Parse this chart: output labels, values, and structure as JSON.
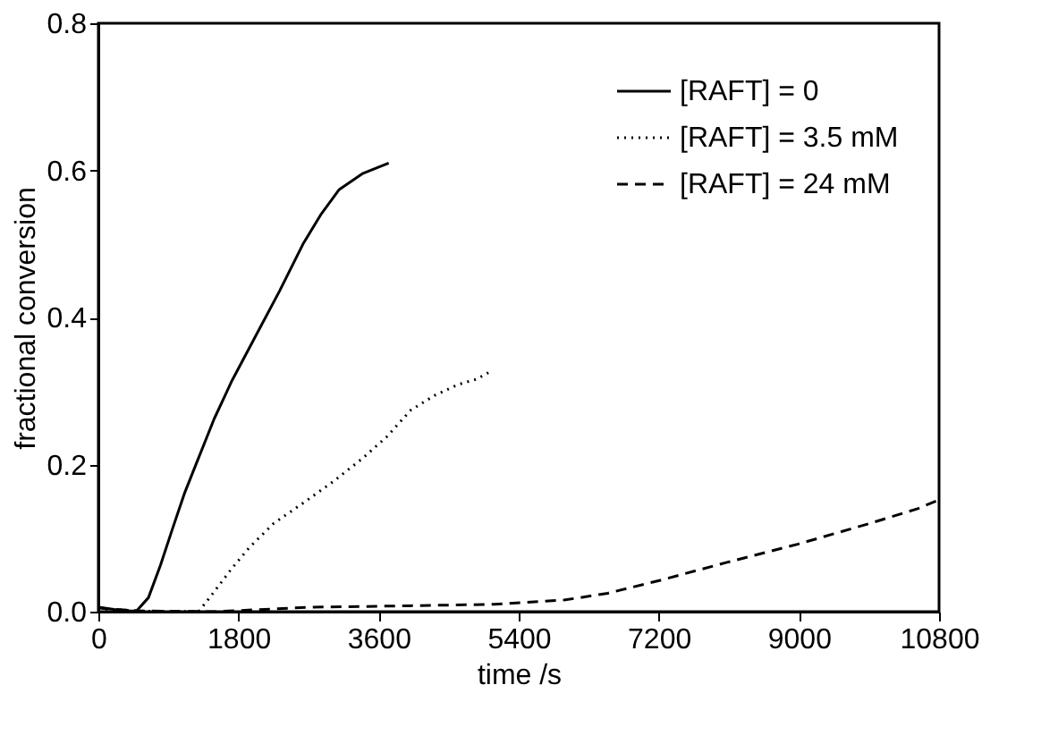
{
  "chart_data": {
    "type": "line",
    "xlabel": "time /s",
    "ylabel": "fractional conversion",
    "xlim": [
      0,
      10800
    ],
    "xticks": [
      0,
      1800,
      3600,
      5400,
      7200,
      9000,
      10800
    ],
    "ylim": [
      0,
      0.8
    ],
    "yticks": [
      {
        "value": 0,
        "label": "0.0"
      },
      {
        "value": 0.2,
        "label": "0.2"
      },
      {
        "value": 0.4,
        "label": "0.4"
      },
      {
        "value": 0.6,
        "label": "0.6"
      },
      {
        "value": 0.8,
        "label": "0.8"
      }
    ],
    "grid": false,
    "legend": "top right",
    "marker": "none",
    "series": [
      {
        "name": "[RAFT] = 0",
        "color": "#000000",
        "line_style": "solid",
        "x": [
          0,
          200,
          400,
          490,
          643,
          797,
          950,
          1103,
          1257,
          1487,
          1716,
          2022,
          2328,
          2635,
          2865,
          3094,
          3400,
          3730
        ],
        "values": [
          0.006,
          0.003,
          0.001,
          0.001,
          0.019,
          0.063,
          0.112,
          0.16,
          0.201,
          0.262,
          0.314,
          0.375,
          0.436,
          0.501,
          0.541,
          0.574,
          0.596,
          0.61
        ]
      },
      {
        "name": "[RAFT] = 3.5 mM",
        "color": "#000000",
        "line_style": "dotted",
        "x": [
          0,
          500,
          1000,
          1295,
          1487,
          1716,
          1946,
          2252,
          2635,
          3018,
          3400,
          3707,
          4013,
          4320,
          4626,
          4856,
          5063
        ],
        "values": [
          0.004,
          0.001,
          0,
          0.001,
          0.027,
          0.059,
          0.088,
          0.12,
          0.148,
          0.177,
          0.209,
          0.238,
          0.274,
          0.294,
          0.309,
          0.316,
          0.328
        ]
      },
      {
        "name": "[RAFT] = 24 mM",
        "color": "#000000",
        "line_style": "dashed",
        "x": [
          0,
          500,
          1500,
          2712,
          4000,
          5086,
          6000,
          6543,
          7232,
          8074,
          8993,
          9912,
          10525,
          10800
        ],
        "values": [
          0.005,
          0.001,
          0,
          0.006,
          0.008,
          0.01,
          0.016,
          0.025,
          0.043,
          0.067,
          0.092,
          0.12,
          0.14,
          0.152
        ]
      }
    ]
  }
}
